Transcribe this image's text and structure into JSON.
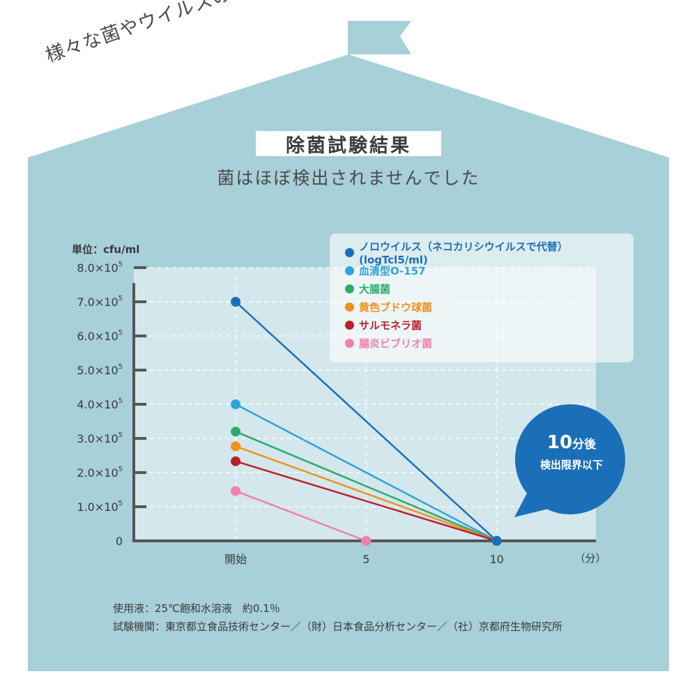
{
  "tagline": "様々な菌やウイルスの除去に！",
  "title": "除菌試験結果",
  "subtitle": "菌はほぼ検出されませんでした",
  "unit_label": "単位：cfu/ml",
  "colors": {
    "house": "#a7d0d8",
    "plot_bg": "#d3e7ec",
    "axis": "#555555",
    "bubble": "#1b6fb8"
  },
  "bubble": {
    "big_number": "10",
    "big_suffix": "分後",
    "line2": "検出限界以下"
  },
  "notes": {
    "line1": "使用液：25℃飽和水溶液　約0.1％",
    "line2": "試験機関：東京都立食品技術センター／（財）日本食品分析センター／（社）京都府生物研究所"
  },
  "chart_data": {
    "type": "line",
    "x_ticks": [
      {
        "value": 0,
        "label": "開始"
      },
      {
        "value": 5,
        "label": "5"
      },
      {
        "value": 10,
        "label": "10"
      }
    ],
    "x_unit_label": "（分）",
    "xlim": [
      -3.9,
      13.8
    ],
    "ylim": [
      0,
      800000
    ],
    "y_ticks": [
      {
        "value": 0,
        "mantissa": "0",
        "exp": ""
      },
      {
        "value": 100000,
        "mantissa": "1.0×10",
        "exp": "5"
      },
      {
        "value": 200000,
        "mantissa": "2.0×10",
        "exp": "5"
      },
      {
        "value": 300000,
        "mantissa": "3.0×10",
        "exp": "5"
      },
      {
        "value": 400000,
        "mantissa": "4.0×10",
        "exp": "5"
      },
      {
        "value": 500000,
        "mantissa": "5.0×10",
        "exp": "5"
      },
      {
        "value": 600000,
        "mantissa": "6.0×10",
        "exp": "5"
      },
      {
        "value": 700000,
        "mantissa": "7.0×10",
        "exp": "5"
      },
      {
        "value": 800000,
        "mantissa": "8.0×10",
        "exp": "5"
      }
    ],
    "grid": true,
    "legend_position": "top-right",
    "series": [
      {
        "name": "ノロウイルス（ネコカリシウイルスで代替）(logTcl5/ml)",
        "color": "#1b6fb8",
        "points": [
          [
            0,
            700000
          ],
          [
            10,
            0
          ]
        ]
      },
      {
        "name": "血清型O-157",
        "color": "#2ea3dc",
        "points": [
          [
            0,
            400000
          ],
          [
            10,
            0
          ]
        ]
      },
      {
        "name": "大腸菌",
        "color": "#2bab6a",
        "points": [
          [
            0,
            320000
          ],
          [
            10,
            0
          ]
        ]
      },
      {
        "name": "黄色ブドウ球菌",
        "color": "#f0901e",
        "points": [
          [
            0,
            277000
          ],
          [
            10,
            0
          ]
        ]
      },
      {
        "name": "サルモネラ菌",
        "color": "#b82129",
        "points": [
          [
            0,
            233000
          ],
          [
            10,
            0
          ]
        ]
      },
      {
        "name": "腸炎ビブリオ菌",
        "color": "#f27fab",
        "points": [
          [
            0,
            146000
          ],
          [
            5,
            0
          ]
        ]
      }
    ]
  }
}
